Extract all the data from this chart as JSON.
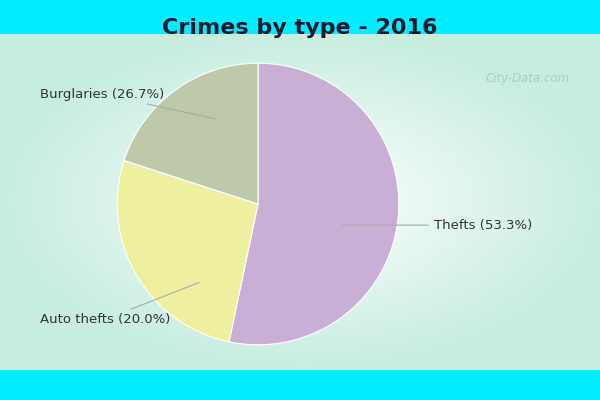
{
  "title": "Crimes by type - 2016",
  "slices": [
    {
      "label": "Thefts (53.3%)",
      "value": 53.3,
      "color": "#c9aed6"
    },
    {
      "label": "Burglaries (26.7%)",
      "value": 26.7,
      "color": "#eef0a0"
    },
    {
      "label": "Auto thefts (20.0%)",
      "value": 20.0,
      "color": "#bdc9a8"
    }
  ],
  "bg_strip_color": "#00eeff",
  "title_fontsize": 16,
  "label_fontsize": 9.5,
  "watermark": "City-Data.com",
  "startangle": 90
}
